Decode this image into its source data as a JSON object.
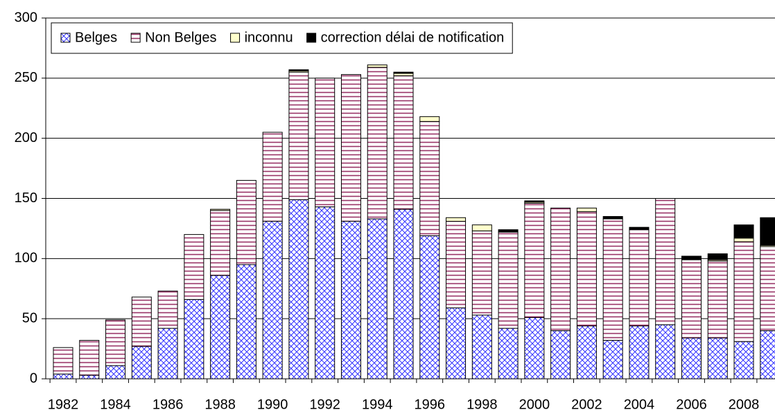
{
  "chart_data": {
    "type": "stacked_bar",
    "categories": [
      "1982",
      null,
      "1984",
      null,
      "1986",
      null,
      "1988",
      null,
      "1990",
      null,
      "1992",
      null,
      "1994",
      null,
      "1996",
      null,
      "1998",
      null,
      "2000",
      null,
      "2002",
      null,
      "2004",
      null,
      "2006",
      null,
      "2008",
      null
    ],
    "series": [
      {
        "name": "Belges",
        "color": "#3333ff",
        "hatch": "cross",
        "values": [
          4,
          3,
          11,
          27,
          42,
          66,
          86,
          95,
          131,
          149,
          143,
          131,
          133,
          141,
          119,
          59,
          53,
          42,
          51,
          40,
          44,
          32,
          44,
          45,
          34,
          34,
          31,
          40
        ]
      },
      {
        "name": "Non Belges",
        "color": "#993366",
        "hatch": "horizontal",
        "values": [
          22,
          29,
          38,
          41,
          31,
          54,
          54,
          70,
          74,
          106,
          107,
          122,
          126,
          111,
          95,
          72,
          70,
          80,
          95,
          102,
          95,
          101,
          80,
          105,
          65,
          64,
          83,
          70
        ]
      },
      {
        "name": "inconnu",
        "color": "#ffffcc",
        "hatch": "none",
        "values": [
          0,
          0,
          0,
          0,
          0,
          0,
          1,
          0,
          0,
          1,
          0,
          0,
          2,
          2,
          4,
          3,
          5,
          0,
          1,
          0,
          3,
          0,
          0,
          0,
          0,
          1,
          3,
          1
        ]
      },
      {
        "name": "correction délai de notification",
        "color": "#000000",
        "hatch": "none",
        "values": [
          0,
          0,
          0,
          0,
          0,
          0,
          0,
          0,
          0,
          1,
          0,
          0,
          0,
          1,
          0,
          0,
          0,
          2,
          1,
          0,
          0,
          2,
          2,
          0,
          3,
          5,
          11,
          23
        ]
      }
    ],
    "ylim": [
      0,
      300
    ],
    "yticks": [
      0,
      50,
      100,
      150,
      200,
      250,
      300
    ],
    "grid": true,
    "legend": "upper left"
  }
}
